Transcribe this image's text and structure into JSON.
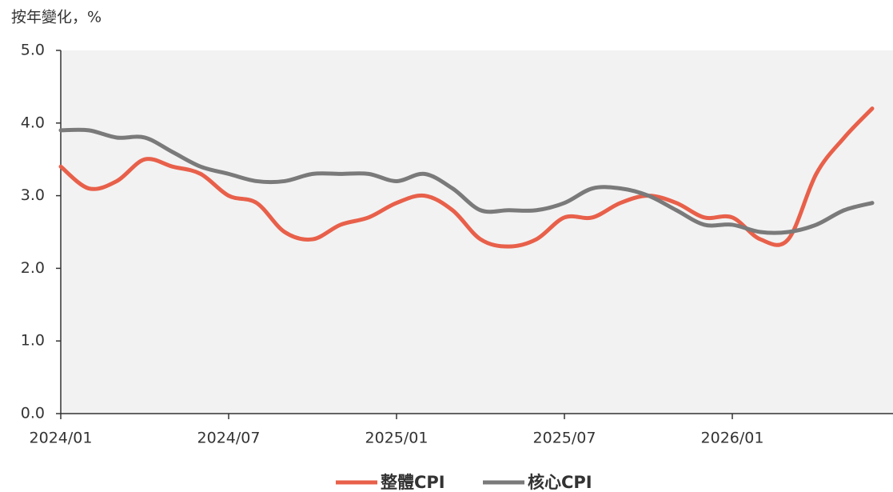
{
  "chart_data": {
    "type": "line",
    "y_label": "按年變化，%",
    "categories": [
      "2024/01",
      null,
      null,
      null,
      null,
      null,
      "2024/07",
      null,
      null,
      null,
      null,
      null,
      "2025/01",
      null,
      null,
      null,
      null,
      null,
      "2025/07",
      null,
      null,
      null,
      null,
      null,
      "2026/01",
      null,
      null,
      null,
      null,
      null
    ],
    "series": [
      {
        "name": "整體CPI",
        "color": "#e8604a",
        "values": [
          3.4,
          3.1,
          3.2,
          3.5,
          3.4,
          3.3,
          3.0,
          2.9,
          2.5,
          2.4,
          2.6,
          2.7,
          2.9,
          3.0,
          2.8,
          2.4,
          2.3,
          2.4,
          2.7,
          2.7,
          2.9,
          3.0,
          2.9,
          2.7,
          2.7,
          2.4,
          2.4,
          3.3,
          3.8,
          4.2
        ]
      },
      {
        "name": "核心CPI",
        "color": "#7a7a7a",
        "values": [
          3.9,
          3.9,
          3.8,
          3.8,
          3.6,
          3.4,
          3.3,
          3.2,
          3.2,
          3.3,
          3.3,
          3.3,
          3.2,
          3.3,
          3.1,
          2.8,
          2.8,
          2.8,
          2.9,
          3.1,
          3.1,
          3.0,
          2.8,
          2.6,
          2.6,
          2.5,
          2.5,
          2.6,
          2.8,
          2.9
        ]
      }
    ],
    "ylim": [
      0,
      5
    ],
    "yticks": [
      {
        "value": 0,
        "label": "0.0"
      },
      {
        "value": 1,
        "label": "1.0"
      },
      {
        "value": 2,
        "label": "2.0"
      },
      {
        "value": 3,
        "label": "3.0"
      },
      {
        "value": 4,
        "label": "4.0"
      },
      {
        "value": 5,
        "label": "5.0"
      }
    ],
    "legend": "bottom"
  }
}
